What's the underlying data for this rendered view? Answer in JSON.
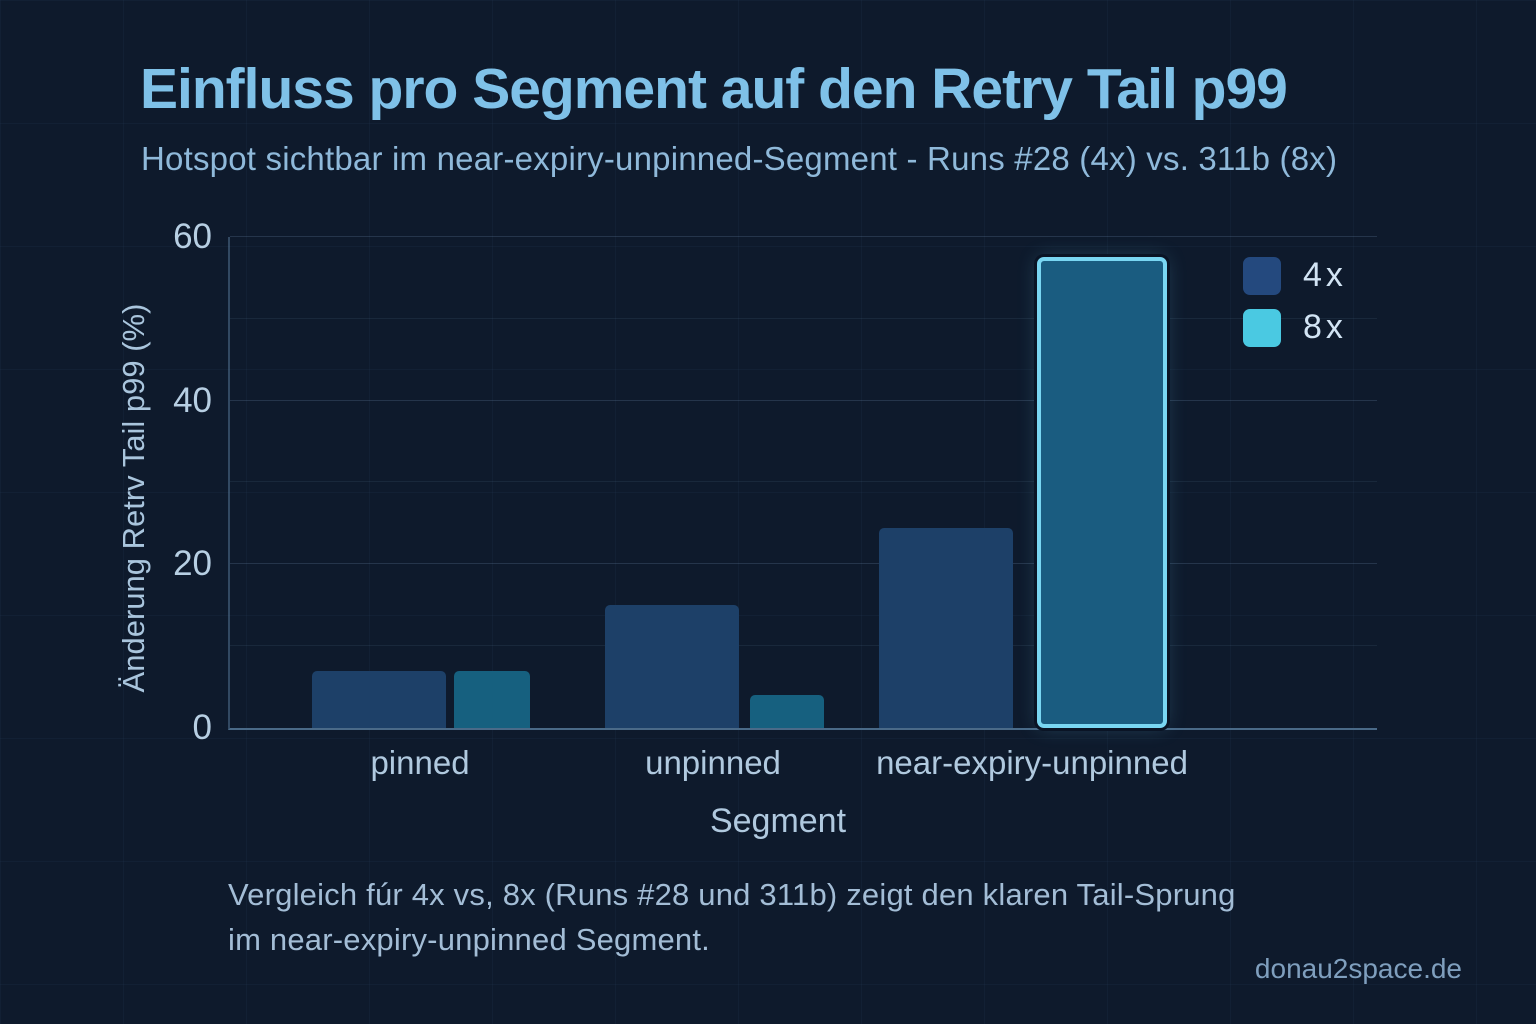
{
  "page": {
    "title": "Einfluss pro Segment auf den Retry Tail p99",
    "subtitle": "Hotspot sichtbar im near-expiry-unpinned-Segment - Runs #28 (4x) vs. 311b (8x)",
    "caption_line1": "Vergleich fúr 4x vs, 8x (Runs #28 und 311b) zeigt den klaren Tail-Sprung",
    "caption_line2": "im near-expiry-unpinned Segment.",
    "watermark": "donau2space.de"
  },
  "colors": {
    "background": "#0e1a2c",
    "title": "#7fc1e8",
    "subtitle": "#8fb9da",
    "axis_text": "#b7cfe3",
    "axis_line": "#4a6a88",
    "series_4x": "#1d4068",
    "series_8x": "#16607f",
    "highlight_fill": "#1a5c80",
    "highlight_border": "#79d6f2",
    "legend_4x": "#24497e",
    "legend_8x": "#4ac9e2"
  },
  "chart_data": {
    "type": "bar",
    "title": "Einfluss pro Segment auf den Retry Tail p99",
    "subtitle": "Hotspot sichtbar im near-expiry-unpinned-Segment - Runs #28 (4x) vs. 311b (8x)",
    "xlabel": "Segment",
    "ylabel": "Änderung Retrv Tail p99 (%)",
    "ylim": [
      0,
      60
    ],
    "yticks": [
      0,
      20,
      40,
      60
    ],
    "grid": "horizontal, faint minor lines every 10",
    "legend_position": "top-right inside plot",
    "categories": [
      "pinned",
      "unpinned",
      "near-expiry-unpinned"
    ],
    "series": [
      {
        "name": "4x",
        "color": "#1d4068",
        "values": [
          7,
          15,
          24.5
        ]
      },
      {
        "name": "8x",
        "color": "#16607f",
        "values": [
          7,
          4,
          57.5
        ]
      }
    ],
    "legend": [
      {
        "label": "4x",
        "color": "#24497e"
      },
      {
        "label": "8x",
        "color": "#4ac9e2"
      }
    ],
    "highlight": {
      "series": "8x",
      "category": "near-expiry-unpinned",
      "fill": "#1a5c80",
      "border": "#79d6f2",
      "note": "hotspot bar outlined in cyan"
    }
  }
}
